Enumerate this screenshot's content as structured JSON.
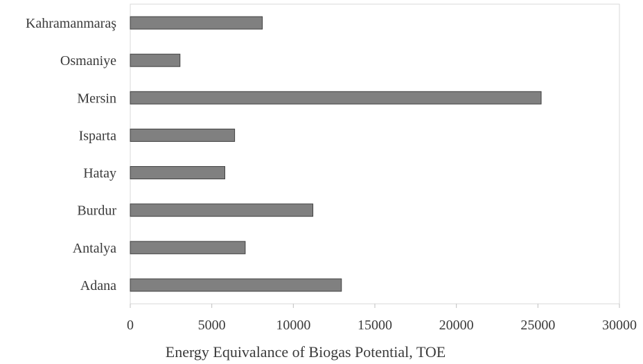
{
  "chart_data": {
    "type": "bar",
    "orientation": "horizontal",
    "categories": [
      "Kahramanmaraş",
      "Osmaniye",
      "Mersin",
      "Isparta",
      "Hatay",
      "Burdur",
      "Antalya",
      "Adana"
    ],
    "values": [
      8100,
      3050,
      25200,
      6400,
      5800,
      11200,
      7050,
      12950
    ],
    "xlabel": "Energy Equivalance of Biogas Potential, TOE",
    "ylabel": "",
    "xlim": [
      0,
      30000
    ],
    "xticks": [
      "0",
      "5000",
      "10000",
      "15000",
      "20000",
      "25000",
      "30000"
    ],
    "grid": false,
    "bar_color": "#808080",
    "bar_edge_color": "#404040",
    "frame_color": "#d9d9d9"
  }
}
